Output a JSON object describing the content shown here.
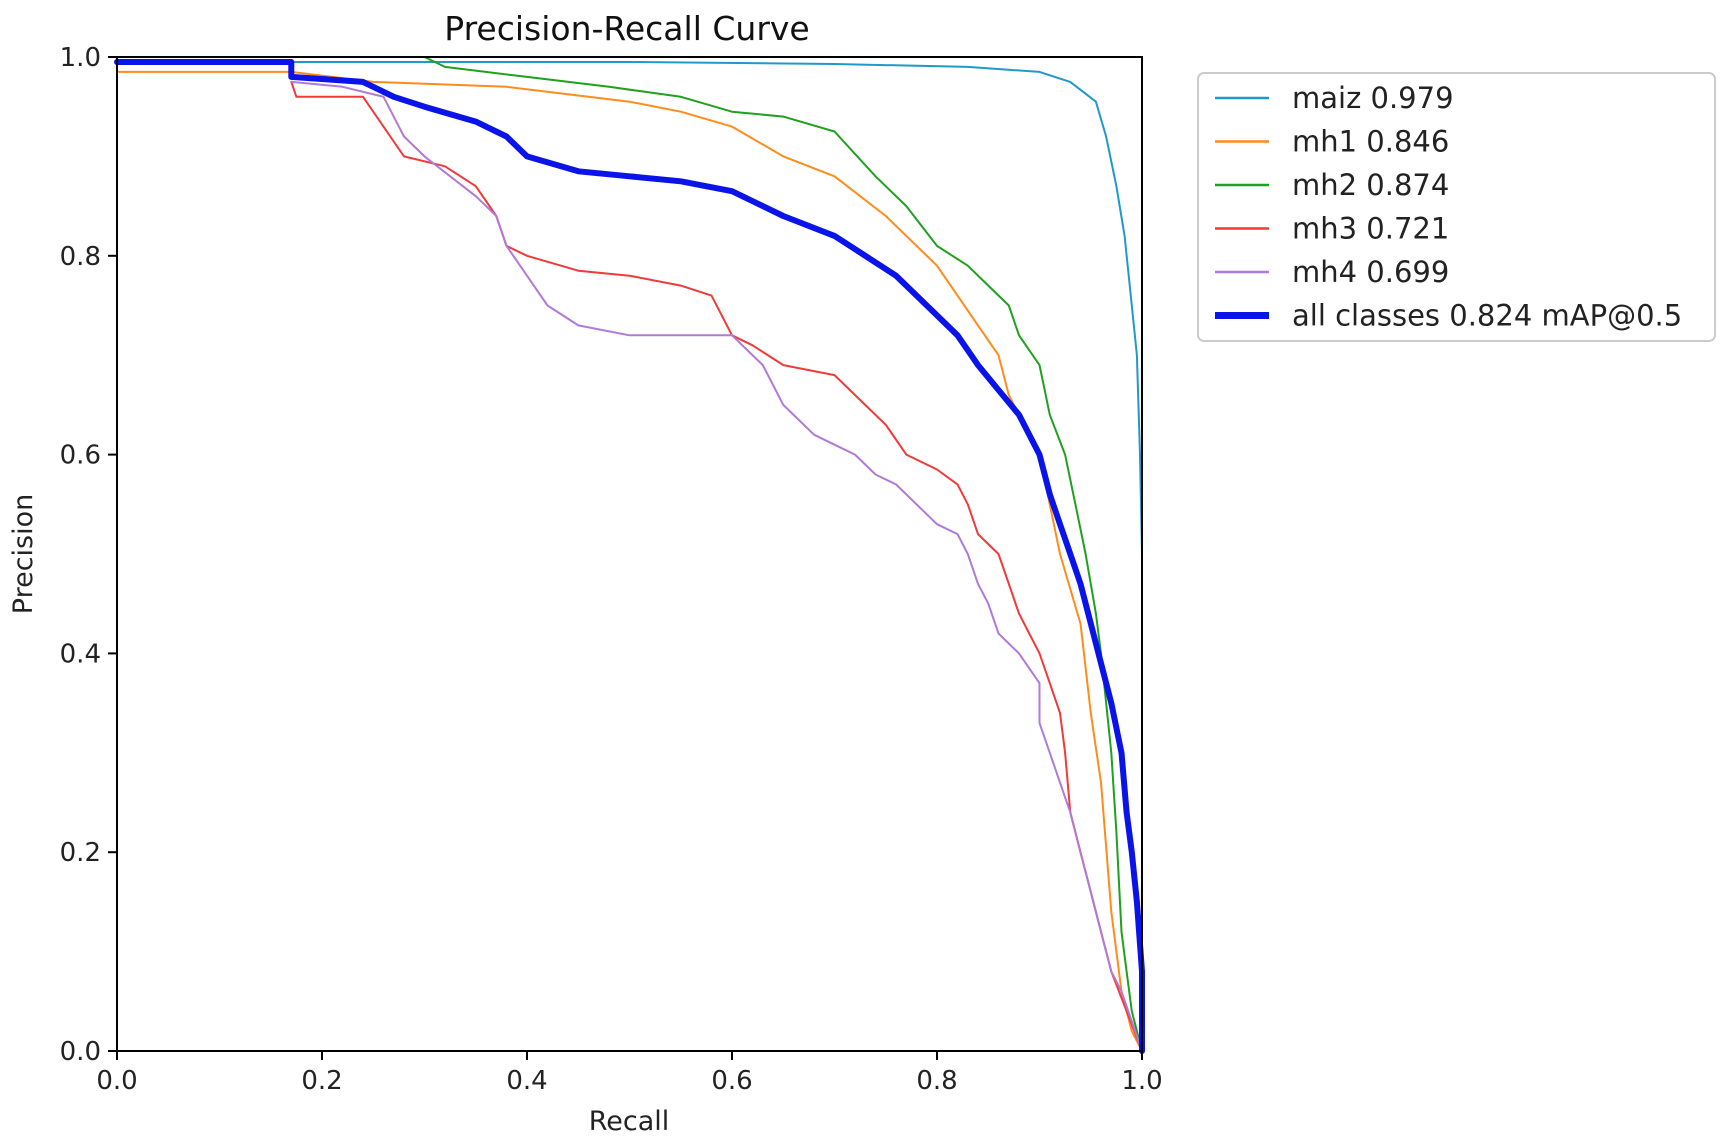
{
  "chart_data": {
    "type": "line",
    "title": "Precision-Recall Curve",
    "xlabel": "Recall",
    "ylabel": "Precision",
    "xlim": [
      0,
      1
    ],
    "ylim": [
      0,
      1
    ],
    "x_ticks": [
      "0.0",
      "0.2",
      "0.4",
      "0.6",
      "0.8",
      "1.0"
    ],
    "y_ticks": [
      "0.0",
      "0.2",
      "0.4",
      "0.6",
      "0.8",
      "1.0"
    ],
    "grid": false,
    "legend_position": "outside-right-top",
    "series": [
      {
        "name": "maiz 0.979",
        "color": "#1f9ac8",
        "width": 2,
        "points": [
          [
            0,
            0.995
          ],
          [
            0.5,
            0.995
          ],
          [
            0.7,
            0.993
          ],
          [
            0.83,
            0.99
          ],
          [
            0.9,
            0.985
          ],
          [
            0.93,
            0.975
          ],
          [
            0.955,
            0.955
          ],
          [
            0.965,
            0.92
          ],
          [
            0.975,
            0.87
          ],
          [
            0.983,
            0.82
          ],
          [
            0.99,
            0.75
          ],
          [
            0.995,
            0.7
          ],
          [
            0.998,
            0.6
          ],
          [
            1.0,
            0.5
          ],
          [
            1.0,
            0
          ]
        ]
      },
      {
        "name": "mh1 0.846",
        "color": "#ff8c1a",
        "width": 2,
        "points": [
          [
            0,
            0.985
          ],
          [
            0.17,
            0.985
          ],
          [
            0.25,
            0.975
          ],
          [
            0.38,
            0.97
          ],
          [
            0.5,
            0.955
          ],
          [
            0.55,
            0.945
          ],
          [
            0.6,
            0.93
          ],
          [
            0.65,
            0.9
          ],
          [
            0.7,
            0.88
          ],
          [
            0.75,
            0.84
          ],
          [
            0.8,
            0.79
          ],
          [
            0.84,
            0.73
          ],
          [
            0.86,
            0.7
          ],
          [
            0.87,
            0.66
          ],
          [
            0.9,
            0.6
          ],
          [
            0.92,
            0.5
          ],
          [
            0.94,
            0.43
          ],
          [
            0.95,
            0.34
          ],
          [
            0.96,
            0.27
          ],
          [
            0.97,
            0.14
          ],
          [
            0.98,
            0.06
          ],
          [
            0.99,
            0.02
          ],
          [
            1.0,
            0.0
          ]
        ]
      },
      {
        "name": "mh2 0.874",
        "color": "#1ea11e",
        "width": 2,
        "points": [
          [
            0.3,
            1.0
          ],
          [
            0.32,
            0.99
          ],
          [
            0.4,
            0.98
          ],
          [
            0.48,
            0.97
          ],
          [
            0.55,
            0.96
          ],
          [
            0.6,
            0.945
          ],
          [
            0.65,
            0.94
          ],
          [
            0.7,
            0.925
          ],
          [
            0.74,
            0.88
          ],
          [
            0.77,
            0.85
          ],
          [
            0.8,
            0.81
          ],
          [
            0.83,
            0.79
          ],
          [
            0.85,
            0.77
          ],
          [
            0.87,
            0.75
          ],
          [
            0.88,
            0.72
          ],
          [
            0.9,
            0.69
          ],
          [
            0.91,
            0.64
          ],
          [
            0.925,
            0.6
          ],
          [
            0.935,
            0.55
          ],
          [
            0.945,
            0.5
          ],
          [
            0.955,
            0.44
          ],
          [
            0.96,
            0.4
          ],
          [
            0.97,
            0.3
          ],
          [
            0.975,
            0.22
          ],
          [
            0.98,
            0.12
          ],
          [
            0.985,
            0.08
          ],
          [
            0.99,
            0.04
          ],
          [
            1.0,
            0.0
          ]
        ]
      },
      {
        "name": "mh3 0.721",
        "color": "#f03a3a",
        "width": 2,
        "points": [
          [
            0.17,
            0.975
          ],
          [
            0.175,
            0.96
          ],
          [
            0.24,
            0.96
          ],
          [
            0.26,
            0.93
          ],
          [
            0.28,
            0.9
          ],
          [
            0.32,
            0.89
          ],
          [
            0.35,
            0.87
          ],
          [
            0.37,
            0.84
          ],
          [
            0.38,
            0.81
          ],
          [
            0.4,
            0.8
          ],
          [
            0.45,
            0.785
          ],
          [
            0.5,
            0.78
          ],
          [
            0.55,
            0.77
          ],
          [
            0.58,
            0.76
          ],
          [
            0.6,
            0.72
          ],
          [
            0.62,
            0.71
          ],
          [
            0.65,
            0.69
          ],
          [
            0.7,
            0.68
          ],
          [
            0.72,
            0.66
          ],
          [
            0.75,
            0.63
          ],
          [
            0.77,
            0.6
          ],
          [
            0.8,
            0.585
          ],
          [
            0.82,
            0.57
          ],
          [
            0.83,
            0.55
          ],
          [
            0.84,
            0.52
          ],
          [
            0.86,
            0.5
          ],
          [
            0.87,
            0.47
          ],
          [
            0.88,
            0.44
          ],
          [
            0.9,
            0.4
          ],
          [
            0.91,
            0.37
          ],
          [
            0.92,
            0.34
          ],
          [
            0.925,
            0.3
          ],
          [
            0.93,
            0.24
          ],
          [
            0.94,
            0.2
          ],
          [
            0.95,
            0.16
          ],
          [
            0.96,
            0.12
          ],
          [
            0.97,
            0.08
          ],
          [
            1.0,
            0.0
          ]
        ]
      },
      {
        "name": "mh4 0.699",
        "color": "#b07ad6",
        "width": 2,
        "points": [
          [
            0.17,
            0.975
          ],
          [
            0.22,
            0.97
          ],
          [
            0.26,
            0.96
          ],
          [
            0.28,
            0.92
          ],
          [
            0.3,
            0.9
          ],
          [
            0.35,
            0.86
          ],
          [
            0.37,
            0.84
          ],
          [
            0.38,
            0.81
          ],
          [
            0.4,
            0.78
          ],
          [
            0.42,
            0.75
          ],
          [
            0.45,
            0.73
          ],
          [
            0.5,
            0.72
          ],
          [
            0.6,
            0.72
          ],
          [
            0.63,
            0.69
          ],
          [
            0.65,
            0.65
          ],
          [
            0.68,
            0.62
          ],
          [
            0.7,
            0.61
          ],
          [
            0.72,
            0.6
          ],
          [
            0.74,
            0.58
          ],
          [
            0.76,
            0.57
          ],
          [
            0.78,
            0.55
          ],
          [
            0.8,
            0.53
          ],
          [
            0.82,
            0.52
          ],
          [
            0.83,
            0.5
          ],
          [
            0.84,
            0.47
          ],
          [
            0.85,
            0.45
          ],
          [
            0.86,
            0.42
          ],
          [
            0.88,
            0.4
          ],
          [
            0.9,
            0.37
          ],
          [
            0.9,
            0.33
          ],
          [
            0.91,
            0.3
          ],
          [
            0.92,
            0.27
          ],
          [
            0.93,
            0.24
          ],
          [
            0.94,
            0.2
          ],
          [
            0.95,
            0.16
          ],
          [
            0.96,
            0.12
          ],
          [
            0.97,
            0.08
          ],
          [
            0.98,
            0.06
          ],
          [
            1.0,
            0.0
          ]
        ]
      },
      {
        "name": "all classes 0.824 mAP@0.5",
        "color": "#0a14e8",
        "width": 6,
        "points": [
          [
            0,
            0.995
          ],
          [
            0.17,
            0.995
          ],
          [
            0.17,
            0.98
          ],
          [
            0.24,
            0.975
          ],
          [
            0.27,
            0.96
          ],
          [
            0.3,
            0.95
          ],
          [
            0.35,
            0.935
          ],
          [
            0.38,
            0.92
          ],
          [
            0.4,
            0.9
          ],
          [
            0.45,
            0.885
          ],
          [
            0.5,
            0.88
          ],
          [
            0.55,
            0.875
          ],
          [
            0.6,
            0.865
          ],
          [
            0.65,
            0.84
          ],
          [
            0.7,
            0.82
          ],
          [
            0.73,
            0.8
          ],
          [
            0.76,
            0.78
          ],
          [
            0.79,
            0.75
          ],
          [
            0.82,
            0.72
          ],
          [
            0.84,
            0.69
          ],
          [
            0.86,
            0.665
          ],
          [
            0.88,
            0.64
          ],
          [
            0.9,
            0.6
          ],
          [
            0.91,
            0.56
          ],
          [
            0.92,
            0.53
          ],
          [
            0.93,
            0.5
          ],
          [
            0.94,
            0.47
          ],
          [
            0.95,
            0.43
          ],
          [
            0.96,
            0.39
          ],
          [
            0.97,
            0.35
          ],
          [
            0.98,
            0.3
          ],
          [
            0.985,
            0.24
          ],
          [
            0.99,
            0.2
          ],
          [
            0.995,
            0.15
          ],
          [
            1.0,
            0.08
          ],
          [
            1.0,
            0.0
          ]
        ]
      }
    ]
  }
}
